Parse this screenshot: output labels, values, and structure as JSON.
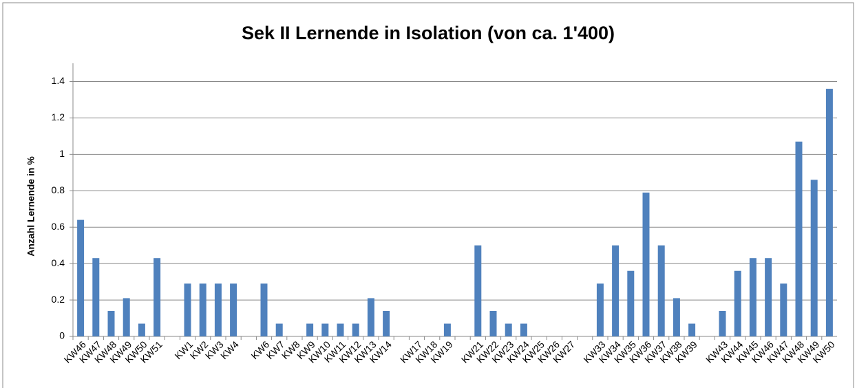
{
  "chart_data": {
    "type": "bar",
    "title": "Sek II Lernende in Isolation (von ca. 1'400)",
    "y_label": "Anzahl Lernende in %",
    "categories": [
      "KW46",
      "KW47",
      "KW48",
      "KW49",
      "KW50",
      "KW51",
      null,
      "KW1",
      "KW2",
      "KW3",
      "KW4",
      null,
      "KW6",
      "KW7",
      "KW8",
      "KW9",
      "KW10",
      "KW11",
      "KW12",
      "KW13",
      "KW14",
      null,
      "KW17",
      "KW18",
      "KW19",
      null,
      "KW21",
      "KW22",
      "KW23",
      "KW24",
      "KW25",
      "KW26",
      "KW27",
      null,
      "KW33",
      "KW34",
      "KW35",
      "KW36",
      "KW37",
      "KW38",
      "KW39",
      null,
      "KW43",
      "KW44",
      "KW45",
      "KW46",
      "KW47",
      "KW48",
      "KW49",
      "KW50"
    ],
    "values": [
      0.64,
      0.43,
      0.14,
      0.21,
      0.07,
      0.43,
      null,
      0.29,
      0.29,
      0.29,
      0.29,
      null,
      0.29,
      0.07,
      0,
      0.07,
      0.07,
      0.07,
      0.07,
      0.21,
      0.14,
      null,
      0,
      0,
      0.07,
      null,
      0.5,
      0.14,
      0.07,
      0.07,
      0,
      0,
      0,
      null,
      0.29,
      0.5,
      0.36,
      0.79,
      0.5,
      0.21,
      0.07,
      null,
      0.14,
      0.36,
      0.43,
      0.43,
      0.29,
      1.07,
      0.86,
      1.36
    ],
    "color": "#4f81bd",
    "ylim": [
      0,
      1.5
    ],
    "yticks": [
      0,
      0.2,
      0.4,
      0.6,
      0.8,
      1,
      1.2,
      1.4
    ],
    "grid": true
  }
}
